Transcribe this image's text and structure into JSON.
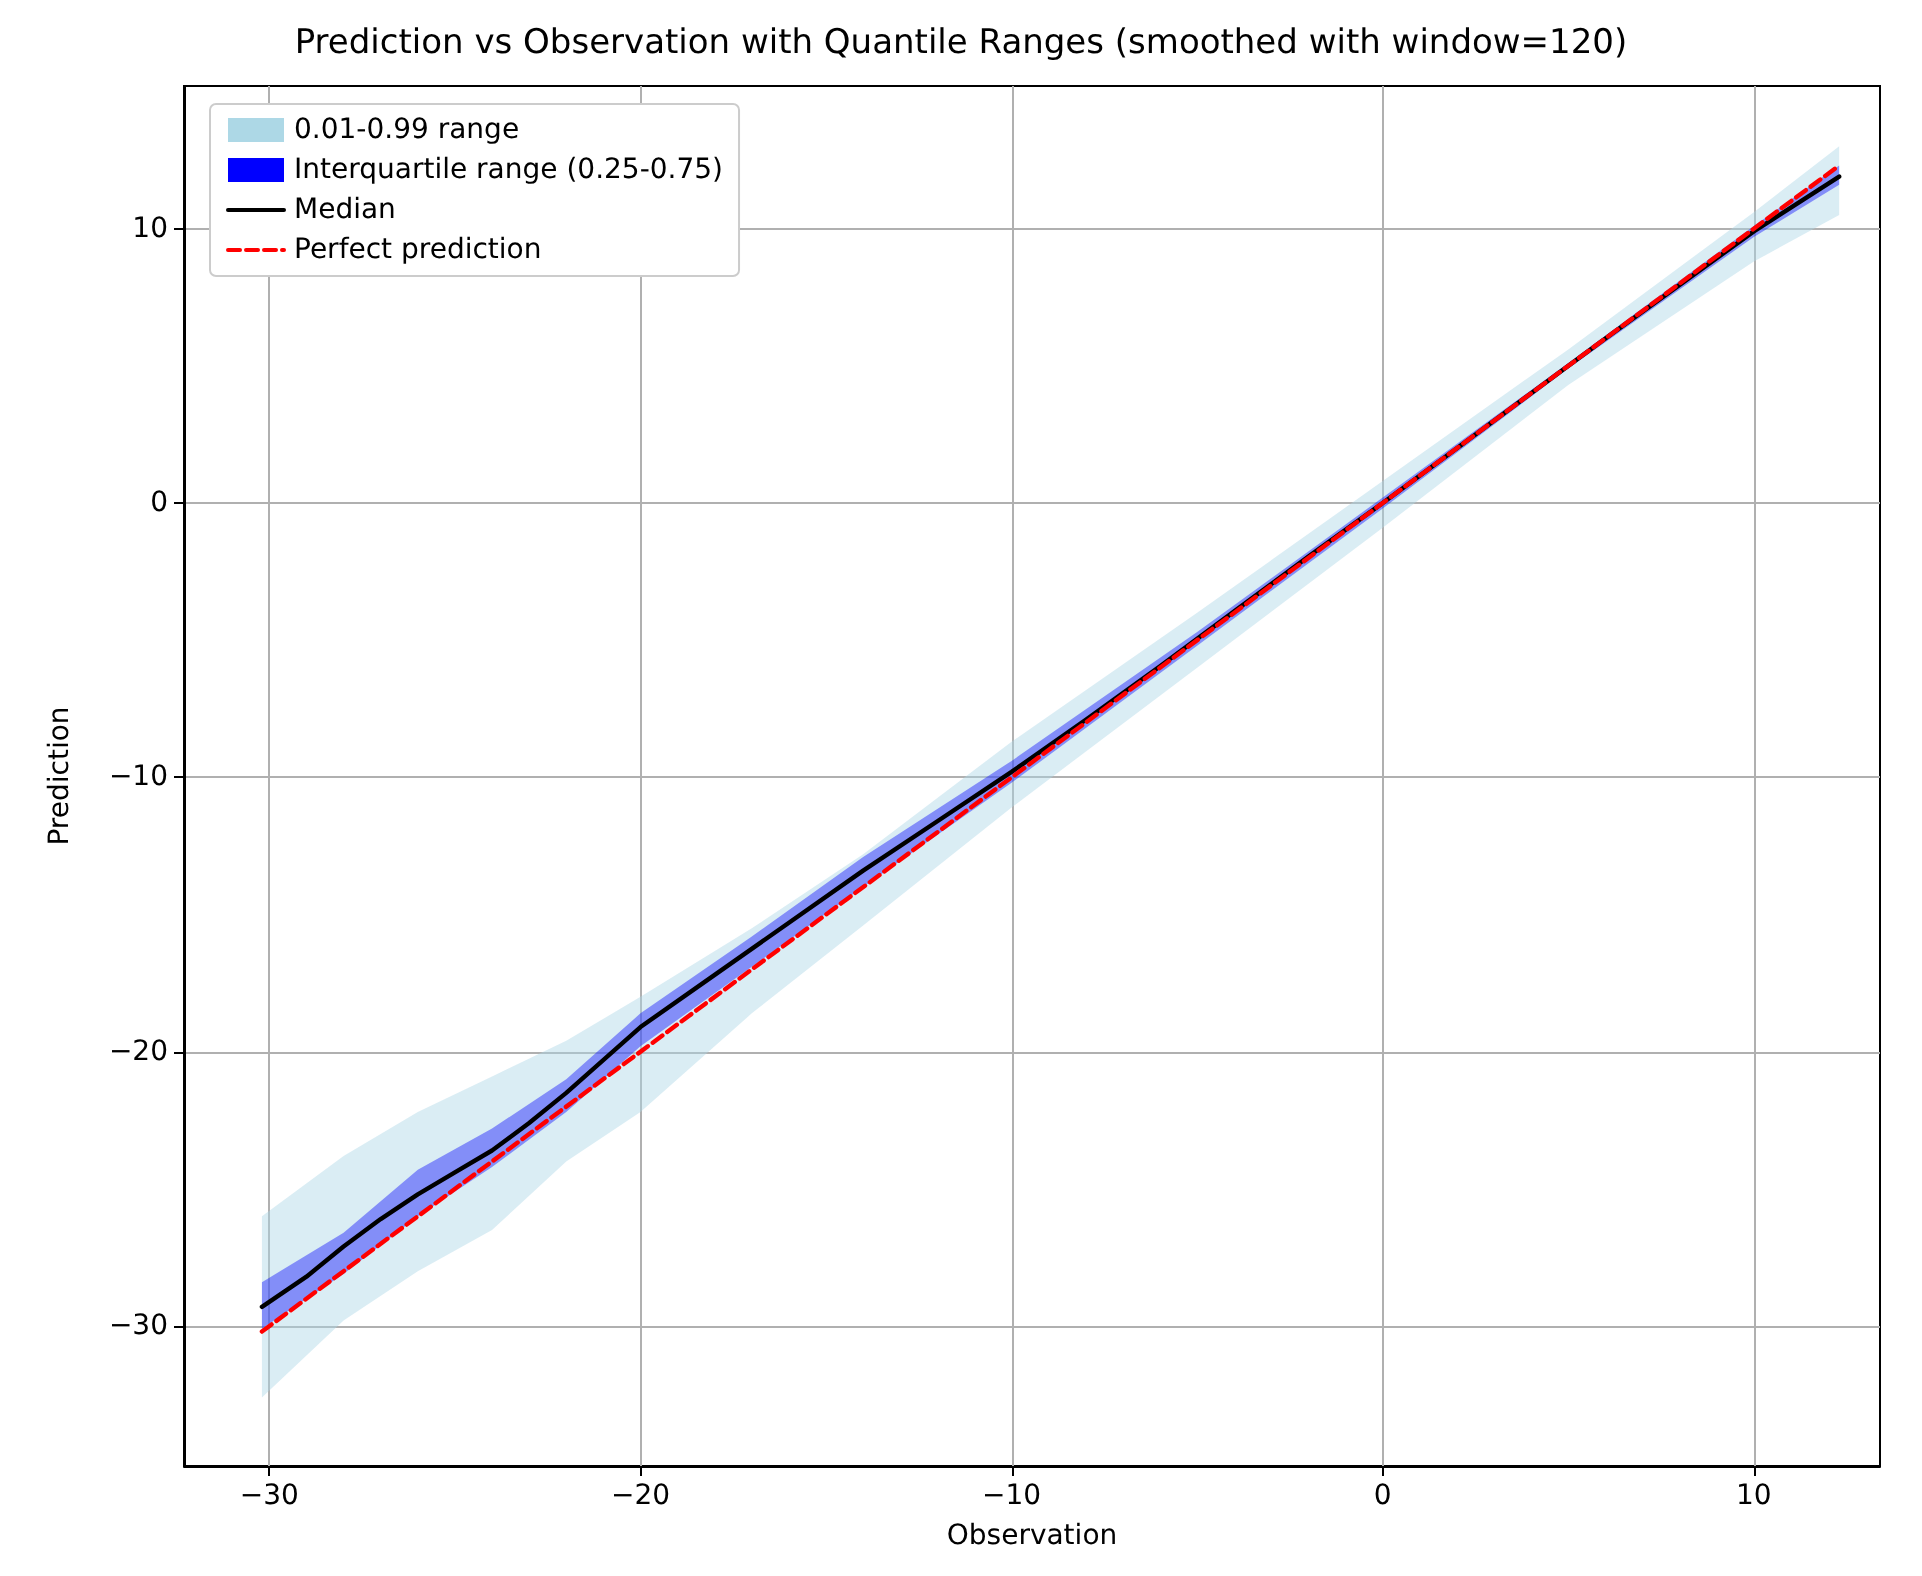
{
  "chart_data": {
    "type": "line",
    "title": "Prediction vs Observation with Quantile Ranges (smoothed with window=120)",
    "xlabel": "Observation",
    "ylabel": "Prediction",
    "xlim": [
      -32.3,
      13.4
    ],
    "ylim": [
      -35.1,
      15.2
    ],
    "xticks": [
      -30,
      -20,
      -10,
      0,
      10
    ],
    "yticks": [
      -30,
      -20,
      -10,
      0,
      10
    ],
    "grid": true,
    "legend": "top left",
    "marker": "none",
    "series": [
      {
        "name": "0.01-0.99 range",
        "type": "area",
        "color": "#add8e6",
        "x": [
          -30.2,
          -28,
          -26,
          -24,
          -22,
          -20,
          -17,
          -14,
          -10,
          -5,
          0,
          5,
          10,
          12.3
        ],
        "values": [
          null,
          null,
          null,
          null,
          null,
          null,
          null,
          null,
          null,
          null,
          null,
          null,
          null,
          null
        ],
        "lower": [
          -32.6,
          -29.8,
          -28.0,
          -26.5,
          -24.0,
          -22.2,
          -18.6,
          -15.4,
          -11.1,
          -6.0,
          -0.9,
          4.3,
          8.8,
          10.5
        ],
        "upper": [
          -26,
          -23.8,
          -22.2,
          -20.9,
          -19.6,
          -18.0,
          -15.5,
          -12.8,
          -8.7,
          -4.0,
          0.8,
          5.6,
          10.6,
          13.0
        ]
      },
      {
        "name": "Interquartile range (0.25-0.75)",
        "type": "area",
        "color": "#0000ff",
        "x": [
          -30.2,
          -28,
          -26,
          -24,
          -22,
          -20,
          -17,
          -14,
          -10,
          -5,
          0,
          5,
          10,
          12.3
        ],
        "values": [
          null,
          null,
          null,
          null,
          null,
          null,
          null,
          null,
          null,
          null,
          null,
          null,
          null,
          null
        ],
        "lower": [
          -30.1,
          -28.1,
          -26.0,
          -24.2,
          -22.2,
          -19.8,
          -16.9,
          -14.0,
          -10.2,
          -5.2,
          -0.2,
          4.9,
          9.7,
          11.6
        ],
        "upper": [
          -28.4,
          -26.6,
          -24.3,
          -22.8,
          -21.0,
          -18.6,
          -15.8,
          -12.9,
          -9.4,
          -4.7,
          0.2,
          5.1,
          10.1,
          12.3
        ]
      },
      {
        "name": "Median",
        "color": "#000000",
        "line_style": "solid",
        "x": [
          -30.2,
          -29,
          -28,
          -27,
          -26,
          -25,
          -24,
          -23,
          -22,
          -20,
          -18,
          -16,
          -14,
          -12,
          -10,
          -8,
          -6,
          -4,
          -2,
          0,
          2,
          4,
          6,
          8,
          10,
          12.3
        ],
        "values": [
          -29.3,
          -28.2,
          -27.1,
          -26.1,
          -25.2,
          -24.4,
          -23.6,
          -22.6,
          -21.5,
          -19.1,
          -17.2,
          -15.3,
          -13.4,
          -11.6,
          -9.8,
          -7.9,
          -5.95,
          -3.95,
          -1.95,
          0,
          2,
          4,
          6,
          7.95,
          9.9,
          11.9
        ]
      },
      {
        "name": "Perfect prediction",
        "color": "#ff0000",
        "line_style": "dashed",
        "x": [
          -30.2,
          12.3
        ],
        "values": [
          -30.2,
          12.3
        ]
      }
    ]
  }
}
